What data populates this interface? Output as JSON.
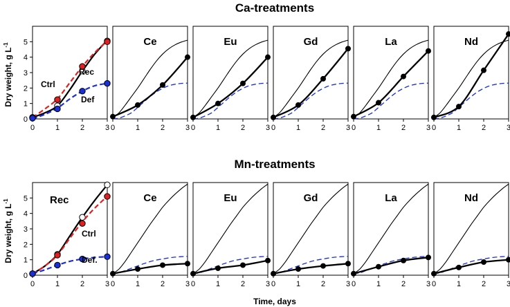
{
  "figure": {
    "xlabel": "Time, days",
    "ylabel_main": "Dry weight, g L",
    "ylabel_sup": "-1",
    "colors": {
      "rec": "#000000",
      "ctrl": "#e02020",
      "def": "#1a2fd6"
    }
  },
  "chart_data": [
    {
      "type": "line",
      "title": "Ca-treatments",
      "xlim": [
        0,
        3
      ],
      "ylim": [
        0,
        6
      ],
      "x_ticks": [
        0,
        1,
        2,
        3
      ],
      "y_ticks": [
        0,
        1,
        2,
        3,
        4,
        5
      ],
      "reference": {
        "rec_curve": [
          [
            0,
            0.1
          ],
          [
            0.25,
            0.4
          ],
          [
            0.5,
            0.9
          ],
          [
            0.75,
            1.45
          ],
          [
            1,
            2.0
          ],
          [
            1.25,
            2.6
          ],
          [
            1.5,
            3.2
          ],
          [
            1.75,
            3.75
          ],
          [
            2,
            4.2
          ],
          [
            2.25,
            4.55
          ],
          [
            2.5,
            4.8
          ],
          [
            2.75,
            4.98
          ],
          [
            3,
            5.1
          ]
        ],
        "def_curve": [
          [
            0,
            0.0
          ],
          [
            0.25,
            0.05
          ],
          [
            0.5,
            0.2
          ],
          [
            0.75,
            0.4
          ],
          [
            1,
            0.75
          ],
          [
            1.25,
            1.1
          ],
          [
            1.5,
            1.45
          ],
          [
            1.75,
            1.75
          ],
          [
            2,
            1.98
          ],
          [
            2.25,
            2.15
          ],
          [
            2.5,
            2.25
          ],
          [
            2.75,
            2.3
          ],
          [
            3,
            2.32
          ]
        ]
      },
      "panels": [
        {
          "label": "",
          "control": true,
          "series": [
            {
              "name": "Rec",
              "curve": [
                [
                  0,
                  0.1
                ],
                [
                  0.5,
                  0.4
                ],
                [
                  1,
                  0.85
                ],
                [
                  1.5,
                  1.9
                ],
                [
                  2,
                  3.1
                ],
                [
                  2.5,
                  4.2
                ],
                [
                  3,
                  5.1
                ]
              ],
              "points": [
                [
                  0,
                  0.1
                ],
                [
                  1,
                  0.85
                ],
                [
                  2,
                  3.1
                ],
                [
                  3,
                  5.05
                ]
              ]
            },
            {
              "name": "Ctrl",
              "curve": [
                [
                  0,
                  0.1
                ],
                [
                  0.5,
                  0.65
                ],
                [
                  1,
                  1.3
                ],
                [
                  1.5,
                  2.35
                ],
                [
                  2,
                  3.4
                ],
                [
                  2.5,
                  4.3
                ],
                [
                  3,
                  5.05
                ]
              ],
              "points": [
                [
                  0,
                  0.1
                ],
                [
                  1,
                  1.25
                ],
                [
                  2,
                  3.4
                ],
                [
                  3,
                  5.0
                ]
              ]
            },
            {
              "name": "Def",
              "curve": [
                [
                  0,
                  0.0
                ],
                [
                  0.5,
                  0.3
                ],
                [
                  1,
                  0.7
                ],
                [
                  1.5,
                  1.3
                ],
                [
                  2,
                  1.8
                ],
                [
                  2.5,
                  2.15
                ],
                [
                  3,
                  2.3
                ]
              ],
              "points": [
                [
                  0,
                  0.05
                ],
                [
                  1,
                  0.65
                ],
                [
                  2,
                  1.8
                ],
                [
                  3,
                  2.3
                ]
              ]
            }
          ],
          "labels": [
            "Ctrl",
            "Rec",
            "Def"
          ]
        },
        {
          "label": "Ce",
          "points": [
            [
              0,
              0.15
            ],
            [
              1,
              0.9
            ],
            [
              2,
              2.2
            ],
            [
              3,
              4.0
            ]
          ]
        },
        {
          "label": "Eu",
          "points": [
            [
              0,
              0.1
            ],
            [
              1,
              1.0
            ],
            [
              2,
              2.3
            ],
            [
              3,
              4.0
            ]
          ]
        },
        {
          "label": "Gd",
          "points": [
            [
              0,
              0.1
            ],
            [
              1,
              0.9
            ],
            [
              2,
              2.6
            ],
            [
              3,
              4.55
            ]
          ]
        },
        {
          "label": "La",
          "points": [
            [
              0,
              0.15
            ],
            [
              1,
              1.05
            ],
            [
              2,
              2.75
            ],
            [
              3,
              4.4
            ]
          ]
        },
        {
          "label": "Nd",
          "points": [
            [
              0,
              0.1
            ],
            [
              1,
              0.8
            ],
            [
              2,
              3.15
            ],
            [
              3,
              5.5
            ]
          ]
        }
      ]
    },
    {
      "type": "line",
      "title": "Mn-treatments",
      "xlim": [
        0,
        3
      ],
      "ylim": [
        0,
        6
      ],
      "x_ticks": [
        0,
        1,
        2,
        3
      ],
      "y_ticks": [
        0,
        1,
        2,
        3,
        4,
        5
      ],
      "reference": {
        "rec_curve": [
          [
            0,
            0.1
          ],
          [
            0.25,
            0.4
          ],
          [
            0.5,
            0.9
          ],
          [
            0.75,
            1.5
          ],
          [
            1,
            2.1
          ],
          [
            1.25,
            2.7
          ],
          [
            1.5,
            3.3
          ],
          [
            1.75,
            3.85
          ],
          [
            2,
            4.4
          ],
          [
            2.25,
            4.85
          ],
          [
            2.5,
            5.25
          ],
          [
            2.75,
            5.6
          ],
          [
            3,
            5.9
          ]
        ],
        "def_curve": [
          [
            0,
            0.1
          ],
          [
            0.25,
            0.15
          ],
          [
            0.5,
            0.3
          ],
          [
            0.75,
            0.45
          ],
          [
            1,
            0.6
          ],
          [
            1.25,
            0.75
          ],
          [
            1.5,
            0.88
          ],
          [
            1.75,
            0.98
          ],
          [
            2,
            1.05
          ],
          [
            2.25,
            1.12
          ],
          [
            2.5,
            1.17
          ],
          [
            2.75,
            1.2
          ],
          [
            3,
            1.22
          ]
        ]
      },
      "panels": [
        {
          "label": "",
          "control": true,
          "series": [
            {
              "name": "Rec",
              "curve": [
                [
                  0,
                  0.1
                ],
                [
                  0.5,
                  0.6
                ],
                [
                  1,
                  1.35
                ],
                [
                  1.5,
                  2.55
                ],
                [
                  2,
                  3.75
                ],
                [
                  2.5,
                  4.85
                ],
                [
                  3,
                  5.85
                ]
              ],
              "points": [
                [
                  0,
                  0.1
                ],
                [
                  1,
                  1.35
                ],
                [
                  2,
                  3.75
                ],
                [
                  3,
                  5.85
                ]
              ]
            },
            {
              "name": "Ctrl",
              "curve": [
                [
                  0,
                  0.1
                ],
                [
                  0.5,
                  0.6
                ],
                [
                  1,
                  1.3
                ],
                [
                  1.5,
                  2.4
                ],
                [
                  2,
                  3.45
                ],
                [
                  2.5,
                  4.35
                ],
                [
                  3,
                  5.1
                ]
              ],
              "points": [
                [
                  0,
                  0.1
                ],
                [
                  1,
                  1.3
                ],
                [
                  2,
                  3.35
                ],
                [
                  3,
                  5.1
                ]
              ]
            },
            {
              "name": "Def.",
              "curve": [
                [
                  0,
                  0.1
                ],
                [
                  0.5,
                  0.35
                ],
                [
                  1,
                  0.65
                ],
                [
                  1.5,
                  0.9
                ],
                [
                  2,
                  1.05
                ],
                [
                  2.5,
                  1.15
                ],
                [
                  3,
                  1.2
                ]
              ],
              "points": [
                [
                  0,
                  0.1
                ],
                [
                  1,
                  0.65
                ],
                [
                  2,
                  1.05
                ],
                [
                  3,
                  1.2
                ]
              ]
            }
          ],
          "labels": [
            "Rec",
            "Ctrl",
            "Def."
          ]
        },
        {
          "label": "Ce",
          "points": [
            [
              0,
              0.1
            ],
            [
              1,
              0.4
            ],
            [
              2,
              0.65
            ],
            [
              3,
              0.75
            ]
          ]
        },
        {
          "label": "Eu",
          "points": [
            [
              0,
              0.1
            ],
            [
              1,
              0.45
            ],
            [
              2,
              0.65
            ],
            [
              3,
              0.95
            ]
          ]
        },
        {
          "label": "Gd",
          "points": [
            [
              0,
              0.1
            ],
            [
              1,
              0.4
            ],
            [
              2,
              0.6
            ],
            [
              3,
              0.75
            ]
          ]
        },
        {
          "label": "La",
          "points": [
            [
              0,
              0.1
            ],
            [
              1,
              0.55
            ],
            [
              2,
              0.95
            ],
            [
              3,
              1.15
            ]
          ]
        },
        {
          "label": "Nd",
          "points": [
            [
              0,
              0.1
            ],
            [
              1,
              0.5
            ],
            [
              2,
              0.85
            ],
            [
              3,
              1.0
            ]
          ]
        }
      ]
    }
  ]
}
